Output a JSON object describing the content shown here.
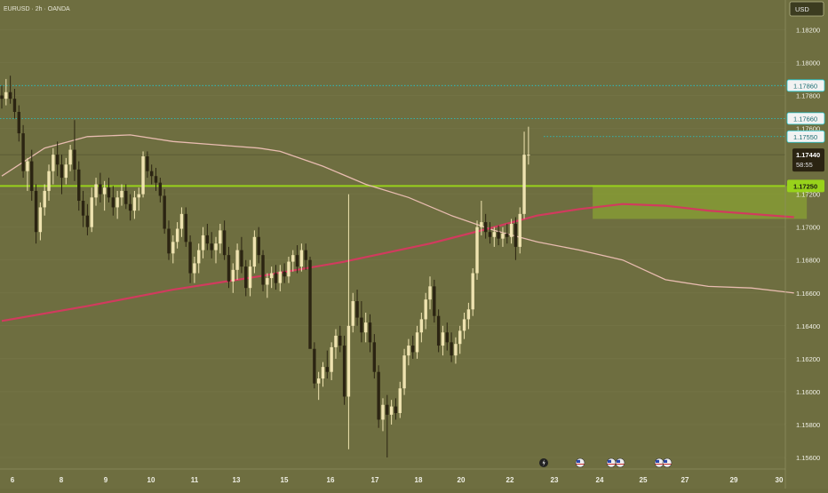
{
  "header": {
    "symbol_title": "EURUSD · 2h · OANDA",
    "currency_button": "USD"
  },
  "colors": {
    "background": "#6e6e40",
    "bull": "#efe3b0",
    "bear": "#2b2412",
    "ma_fast": "#e8bcb0",
    "ma_slow": "#d13b5e",
    "support": "#98d21b",
    "zone": "#8aa233",
    "dotted": "#22c7d0"
  },
  "chart_data": {
    "type": "candlestick",
    "title": "EURUSD · 2h · OANDA",
    "ylim": [
      1.1553,
      1.1838
    ],
    "x_ticks": [
      "6",
      "8",
      "9",
      "10",
      "11",
      "13",
      "15",
      "16",
      "17",
      "18",
      "20",
      "22",
      "23",
      "24",
      "25",
      "27",
      "29",
      "30"
    ],
    "y_ticks": [
      "1.18200",
      "1.18000",
      "1.17800",
      "1.17600",
      "1.17200",
      "1.17000",
      "1.16800",
      "1.16600",
      "1.16400",
      "1.16200",
      "1.16000",
      "1.15800",
      "1.15600"
    ],
    "price_labels": [
      {
        "text": "1.17860",
        "value": 1.1786,
        "kind": "dotted"
      },
      {
        "text": "1.17660",
        "value": 1.1766,
        "kind": "dotted"
      },
      {
        "text": "1.17550",
        "value": 1.1755,
        "kind": "dotted"
      },
      {
        "text": "1.17250",
        "value": 1.1725,
        "kind": "support"
      },
      {
        "text": "1.17440",
        "value": 1.1744,
        "kind": "current",
        "countdown": "58:55"
      }
    ],
    "horizontal_lines": [
      {
        "value": 1.1786,
        "style": "dotted"
      },
      {
        "value": 1.1766,
        "style": "dotted"
      },
      {
        "value": 1.1755,
        "style": "dotted"
      },
      {
        "value": 1.1744,
        "style": "solid-thin"
      },
      {
        "value": 1.1725,
        "style": "support"
      }
    ],
    "zone": {
      "x_start_index": 138,
      "x_end_index": 188,
      "top": 1.1725,
      "bottom": 1.1705
    },
    "series": [
      {
        "kind": "ohlc",
        "values": [
          [
            1.178,
            1.1786,
            1.1772,
            1.1778
          ],
          [
            1.1778,
            1.179,
            1.1774,
            1.1782
          ],
          [
            1.1782,
            1.1792,
            1.1775,
            1.1778
          ],
          [
            1.1778,
            1.1784,
            1.1766,
            1.177
          ],
          [
            1.177,
            1.1774,
            1.1752,
            1.1757
          ],
          [
            1.1757,
            1.1762,
            1.173,
            1.1734
          ],
          [
            1.1734,
            1.1742,
            1.1722,
            1.174
          ],
          [
            1.174,
            1.1747,
            1.1716,
            1.1722
          ],
          [
            1.1722,
            1.1726,
            1.169,
            1.1697
          ],
          [
            1.1697,
            1.1715,
            1.1692,
            1.1712
          ],
          [
            1.1712,
            1.1726,
            1.1707,
            1.1722
          ],
          [
            1.1722,
            1.1738,
            1.1716,
            1.1734
          ],
          [
            1.1734,
            1.1748,
            1.1726,
            1.1744
          ],
          [
            1.1744,
            1.1752,
            1.1731,
            1.1738
          ],
          [
            1.1738,
            1.1744,
            1.172,
            1.173
          ],
          [
            1.173,
            1.1742,
            1.1726,
            1.1738
          ],
          [
            1.1738,
            1.175,
            1.1734,
            1.1747
          ],
          [
            1.1747,
            1.1765,
            1.1728,
            1.1735
          ],
          [
            1.1735,
            1.174,
            1.171,
            1.1716
          ],
          [
            1.1716,
            1.1722,
            1.17,
            1.1707
          ],
          [
            1.1707,
            1.1714,
            1.1695,
            1.17
          ],
          [
            1.17,
            1.1724,
            1.1697,
            1.1718
          ],
          [
            1.1718,
            1.173,
            1.1713,
            1.1726
          ],
          [
            1.1726,
            1.1733,
            1.1715,
            1.172
          ],
          [
            1.172,
            1.1728,
            1.171,
            1.1724
          ],
          [
            1.1724,
            1.173,
            1.1715,
            1.1718
          ],
          [
            1.1718,
            1.1725,
            1.1707,
            1.1712
          ],
          [
            1.1712,
            1.1722,
            1.1705,
            1.1718
          ],
          [
            1.1718,
            1.1726,
            1.1713,
            1.1722
          ],
          [
            1.1722,
            1.1726,
            1.1711,
            1.1714
          ],
          [
            1.1714,
            1.172,
            1.1704,
            1.171
          ],
          [
            1.171,
            1.1722,
            1.1705,
            1.1718
          ],
          [
            1.1718,
            1.1724,
            1.171,
            1.172
          ],
          [
            1.172,
            1.1746,
            1.1718,
            1.1743
          ],
          [
            1.1743,
            1.1746,
            1.173,
            1.1734
          ],
          [
            1.1734,
            1.1738,
            1.1726,
            1.1731
          ],
          [
            1.1731,
            1.1736,
            1.1722,
            1.1727
          ],
          [
            1.1727,
            1.173,
            1.1715,
            1.1719
          ],
          [
            1.1719,
            1.1723,
            1.1696,
            1.1699
          ],
          [
            1.1699,
            1.1704,
            1.168,
            1.1684
          ],
          [
            1.1684,
            1.1695,
            1.1678,
            1.1691
          ],
          [
            1.1691,
            1.1703,
            1.1687,
            1.1699
          ],
          [
            1.1699,
            1.1712,
            1.1694,
            1.1708
          ],
          [
            1.1708,
            1.1712,
            1.1688,
            1.1691
          ],
          [
            1.1691,
            1.1695,
            1.1666,
            1.1672
          ],
          [
            1.1672,
            1.1682,
            1.1666,
            1.1678
          ],
          [
            1.1678,
            1.169,
            1.1672,
            1.1686
          ],
          [
            1.1686,
            1.17,
            1.1681,
            1.1695
          ],
          [
            1.1695,
            1.1702,
            1.1686,
            1.169
          ],
          [
            1.169,
            1.1697,
            1.1681,
            1.1686
          ],
          [
            1.1686,
            1.1694,
            1.1678,
            1.169
          ],
          [
            1.169,
            1.1702,
            1.1684,
            1.1698
          ],
          [
            1.1698,
            1.1704,
            1.168,
            1.1683
          ],
          [
            1.1683,
            1.1688,
            1.1663,
            1.1667
          ],
          [
            1.1667,
            1.1678,
            1.166,
            1.1674
          ],
          [
            1.1674,
            1.169,
            1.1668,
            1.1686
          ],
          [
            1.1686,
            1.1694,
            1.1672,
            1.1676
          ],
          [
            1.1676,
            1.168,
            1.1658,
            1.1663
          ],
          [
            1.1663,
            1.168,
            1.1658,
            1.1676
          ],
          [
            1.1676,
            1.1698,
            1.1672,
            1.1694
          ],
          [
            1.1694,
            1.17,
            1.1678,
            1.1683
          ],
          [
            1.1683,
            1.1686,
            1.1661,
            1.1665
          ],
          [
            1.1665,
            1.1672,
            1.1657,
            1.1669
          ],
          [
            1.1669,
            1.1676,
            1.1663,
            1.1672
          ],
          [
            1.1672,
            1.1677,
            1.1662,
            1.1666
          ],
          [
            1.1666,
            1.1677,
            1.1661,
            1.1673
          ],
          [
            1.1673,
            1.1678,
            1.1666,
            1.167
          ],
          [
            1.167,
            1.1682,
            1.1666,
            1.1679
          ],
          [
            1.1679,
            1.1686,
            1.1673,
            1.1683
          ],
          [
            1.1683,
            1.1689,
            1.1672,
            1.1676
          ],
          [
            1.1676,
            1.169,
            1.1673,
            1.1686
          ],
          [
            1.1686,
            1.169,
            1.1674,
            1.168
          ],
          [
            1.168,
            1.1682,
            1.165,
            1.1626
          ],
          [
            1.1626,
            1.163,
            1.1602,
            1.1605
          ],
          [
            1.1605,
            1.1612,
            1.1595,
            1.1608
          ],
          [
            1.1608,
            1.1618,
            1.1603,
            1.1615
          ],
          [
            1.1615,
            1.1625,
            1.1608,
            1.1612
          ],
          [
            1.1612,
            1.163,
            1.1607,
            1.1627
          ],
          [
            1.1627,
            1.1638,
            1.162,
            1.1634
          ],
          [
            1.1634,
            1.164,
            1.1624,
            1.1628
          ],
          [
            1.1628,
            1.1634,
            1.1592,
            1.1597
          ],
          [
            1.1597,
            1.172,
            1.1565,
            1.164
          ],
          [
            1.164,
            1.166,
            1.1636,
            1.1655
          ],
          [
            1.1655,
            1.1662,
            1.164,
            1.1645
          ],
          [
            1.1645,
            1.1655,
            1.163,
            1.1636
          ],
          [
            1.1636,
            1.1648,
            1.163,
            1.1642
          ],
          [
            1.1642,
            1.1647,
            1.1624,
            1.163
          ],
          [
            1.163,
            1.1635,
            1.1608,
            1.1612
          ],
          [
            1.1612,
            1.1616,
            1.1578,
            1.1583
          ],
          [
            1.1583,
            1.1596,
            1.1576,
            1.1592
          ],
          [
            1.1592,
            1.1598,
            1.156,
            1.1586
          ],
          [
            1.1586,
            1.1595,
            1.158,
            1.1591
          ],
          [
            1.1591,
            1.1596,
            1.1583,
            1.1587
          ],
          [
            1.1587,
            1.1606,
            1.1584,
            1.1602
          ],
          [
            1.1602,
            1.1626,
            1.1598,
            1.1622
          ],
          [
            1.1622,
            1.1632,
            1.1616,
            1.1628
          ],
          [
            1.1628,
            1.1634,
            1.162,
            1.1624
          ],
          [
            1.1624,
            1.164,
            1.162,
            1.1636
          ],
          [
            1.1636,
            1.1648,
            1.163,
            1.1644
          ],
          [
            1.1644,
            1.166,
            1.1638,
            1.1656
          ],
          [
            1.1656,
            1.167,
            1.165,
            1.1664
          ],
          [
            1.1664,
            1.1668,
            1.1642,
            1.1646
          ],
          [
            1.1646,
            1.165,
            1.1624,
            1.1628
          ],
          [
            1.1628,
            1.164,
            1.1622,
            1.1636
          ],
          [
            1.1636,
            1.1642,
            1.1625,
            1.163
          ],
          [
            1.163,
            1.1636,
            1.1618,
            1.1622
          ],
          [
            1.1622,
            1.1633,
            1.1617,
            1.1629
          ],
          [
            1.1629,
            1.164,
            1.1623,
            1.1637
          ],
          [
            1.1637,
            1.1648,
            1.1632,
            1.1644
          ],
          [
            1.1644,
            1.1654,
            1.1638,
            1.165
          ],
          [
            1.165,
            1.1675,
            1.1646,
            1.1672
          ],
          [
            1.1672,
            1.1704,
            1.1668,
            1.17
          ],
          [
            1.17,
            1.1716,
            1.1695,
            1.1703
          ],
          [
            1.1703,
            1.1708,
            1.1693,
            1.1697
          ],
          [
            1.1697,
            1.1703,
            1.169,
            1.1694
          ],
          [
            1.1694,
            1.17,
            1.1688,
            1.1697
          ],
          [
            1.1697,
            1.1701,
            1.1689,
            1.1693
          ],
          [
            1.1693,
            1.17,
            1.1688,
            1.1696
          ],
          [
            1.1696,
            1.1702,
            1.169,
            1.1694
          ],
          [
            1.1694,
            1.1705,
            1.169,
            1.1702
          ],
          [
            1.1702,
            1.1706,
            1.168,
            1.1688
          ],
          [
            1.1688,
            1.1712,
            1.1684,
            1.1708
          ],
          [
            1.1708,
            1.1758,
            1.1705,
            1.1744
          ],
          [
            1.1744,
            1.1761,
            1.1738,
            1.1744
          ]
        ]
      },
      {
        "kind": "ma",
        "name": "",
        "values": [
          [
            0,
            1.1731
          ],
          [
            10,
            1.1748
          ],
          [
            20,
            1.1755
          ],
          [
            30,
            1.1756
          ],
          [
            40,
            1.1752
          ],
          [
            50,
            1.175
          ],
          [
            60,
            1.1748
          ],
          [
            65,
            1.1746
          ],
          [
            75,
            1.1737
          ],
          [
            85,
            1.1726
          ],
          [
            95,
            1.1718
          ],
          [
            105,
            1.1707
          ],
          [
            115,
            1.1698
          ],
          [
            125,
            1.1691
          ],
          [
            135,
            1.1686
          ],
          [
            145,
            1.168
          ],
          [
            150,
            1.1674
          ],
          [
            155,
            1.1668
          ],
          [
            165,
            1.1664
          ],
          [
            175,
            1.1663
          ],
          [
            185,
            1.166
          ]
        ]
      },
      {
        "kind": "ma",
        "name": "",
        "values": [
          [
            0,
            1.1643
          ],
          [
            20,
            1.1652
          ],
          [
            40,
            1.1662
          ],
          [
            60,
            1.167
          ],
          [
            80,
            1.1679
          ],
          [
            100,
            1.169
          ],
          [
            115,
            1.17
          ],
          [
            125,
            1.1707
          ],
          [
            135,
            1.1711
          ],
          [
            145,
            1.1714
          ],
          [
            155,
            1.1713
          ],
          [
            165,
            1.171
          ],
          [
            175,
            1.1708
          ],
          [
            185,
            1.1706
          ]
        ]
      }
    ]
  }
}
